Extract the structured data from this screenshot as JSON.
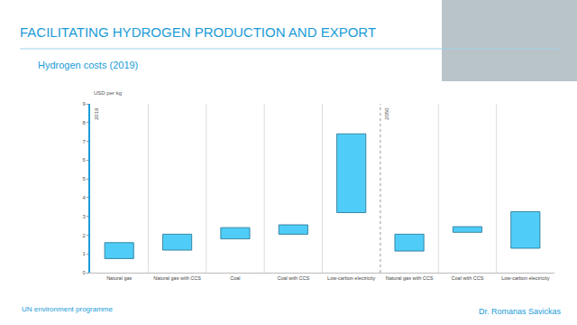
{
  "chart_data": {
    "type": "floating_bar",
    "title": "FACILITATING HYDROGEN PRODUCTION AND EXPORT",
    "subtitle": "Hydrogen costs (2019)",
    "ylabel": "USD per kg",
    "categories": [
      "Natural gas",
      "Natural gas with CCS",
      "Coal",
      "Coal with CCS",
      "Low-carbon electricity",
      "Natural gas with CCS",
      "Coal with CCS",
      "Low-carbon electricity"
    ],
    "values": [
      [
        0.75,
        1.6
      ],
      [
        1.2,
        2.05
      ],
      [
        1.8,
        2.4
      ],
      [
        2.05,
        2.55
      ],
      [
        3.2,
        7.4
      ],
      [
        1.15,
        2.05
      ],
      [
        2.15,
        2.45
      ],
      [
        1.3,
        3.25
      ]
    ],
    "sections": [
      {
        "label": "2019",
        "count": 5
      },
      {
        "label": "2050",
        "count": 3
      }
    ],
    "color": "#4fcdf8",
    "ylim": [
      0,
      9
    ],
    "yticks": [
      0,
      1,
      2,
      3,
      4,
      5,
      6,
      7,
      8,
      9
    ],
    "grid": false,
    "annotations": [
      "Dr. Romanas Savickas",
      "UN environment programme"
    ]
  }
}
